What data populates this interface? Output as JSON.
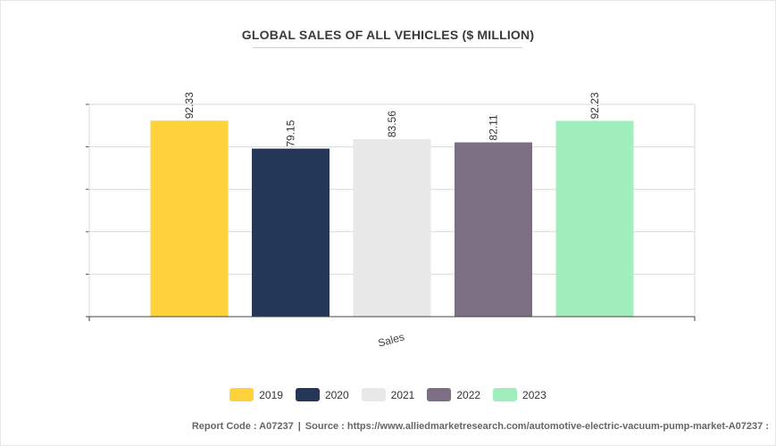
{
  "chart_data": {
    "type": "bar",
    "title": "GLOBAL SALES OF ALL VEHICLES ($ MILLION)",
    "categories": [
      "Sales"
    ],
    "series": [
      {
        "name": "2019",
        "values": [
          92.33
        ],
        "color": "#fdd23b"
      },
      {
        "name": "2020",
        "values": [
          79.15
        ],
        "color": "#253756"
      },
      {
        "name": "2021",
        "values": [
          83.56
        ],
        "color": "#e8e8e8"
      },
      {
        "name": "2022",
        "values": [
          82.11
        ],
        "color": "#7c6e83"
      },
      {
        "name": "2023",
        "values": [
          92.23
        ],
        "color": "#a0eebc"
      }
    ],
    "xlabel": "",
    "ylabel": "",
    "ylim": [
      0,
      100
    ],
    "grid": true,
    "legend": "bottom-center"
  },
  "footer": {
    "report_code": "Report Code : A07237",
    "separator": "|",
    "source": "Source : https://www.alliedmarketresearch.com/automotive-electric-vacuum-pump-market-A07237 :"
  }
}
